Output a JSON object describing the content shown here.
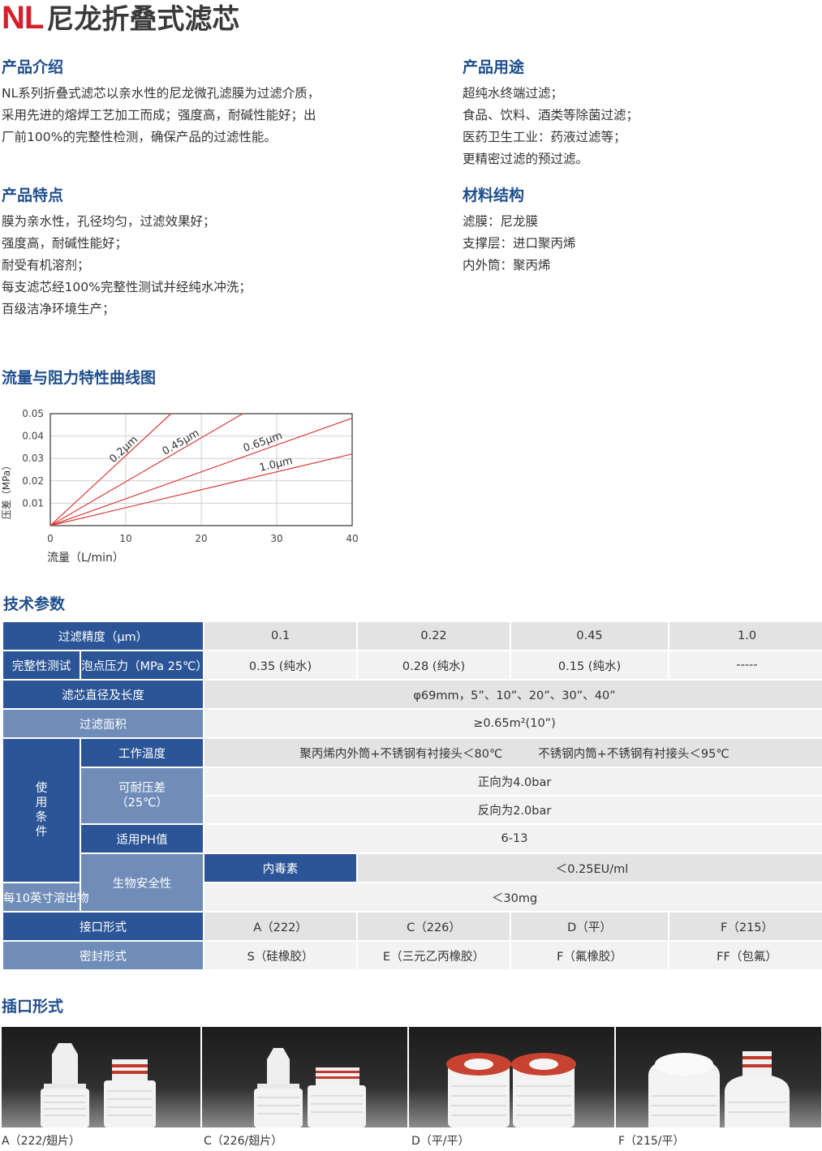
{
  "title": {
    "prefix": "NL",
    "main": "尼龙折叠式滤芯"
  },
  "intro": {
    "heading": "产品介绍",
    "lines": [
      "NL系列折叠式滤芯以亲水性的尼龙微孔滤膜为过滤介质，",
      "采用先进的熔焊工艺加工而成；强度高，耐碱性能好；出",
      "厂前100%的完整性检测，确保产品的过滤性能。"
    ]
  },
  "usage": {
    "heading": "产品用途",
    "lines": [
      "超纯水终端过滤；",
      "食品、饮料、酒类等除菌过滤；",
      "医药卫生工业：药液过滤等；",
      "更精密过滤的预过滤。"
    ]
  },
  "features": {
    "heading": "产品特点",
    "lines": [
      "膜为亲水性，孔径均匀，过滤效果好；",
      "强度高，耐碱性能好；",
      "耐受有机溶剂；",
      "每支滤芯经100%完整性测试并经纯水冲洗；",
      "百级洁净环境生产；"
    ]
  },
  "materials": {
    "heading": "材料结构",
    "lines": [
      "滤膜：尼龙膜",
      "支撑层：进口聚丙烯",
      "内外筒：聚丙烯"
    ]
  },
  "chart_section": {
    "heading": "流量与阻力特性曲线图"
  },
  "chart_data": {
    "type": "line",
    "xlabel": "流量（L/min）",
    "ylabel": "压差（MPa）",
    "xlim": [
      0,
      40
    ],
    "ylim": [
      0,
      0.05
    ],
    "x_ticks": [
      "0",
      "10",
      "20",
      "30",
      "40"
    ],
    "y_ticks": [
      "0.01",
      "0.02",
      "0.03",
      "0.04",
      "0.05"
    ],
    "grid": true,
    "series": [
      {
        "name": "0.2μm",
        "x": [
          0,
          16
        ],
        "y": [
          0,
          0.05
        ],
        "label_at": [
          10,
          0.033
        ]
      },
      {
        "name": "0.45μm",
        "x": [
          0,
          25.5
        ],
        "y": [
          0,
          0.05
        ],
        "label_at": [
          17.5,
          0.036
        ]
      },
      {
        "name": "0.65μm",
        "x": [
          0,
          40
        ],
        "y": [
          0,
          0.048
        ],
        "label_at": [
          28.3,
          0.036
        ]
      },
      {
        "name": "1.0μm",
        "x": [
          0,
          40
        ],
        "y": [
          0,
          0.032
        ],
        "label_at": [
          30,
          0.026
        ]
      }
    ],
    "color": "#d93a3a"
  },
  "tech": {
    "heading": "技术参数",
    "precision_label": "过滤精度（μm）",
    "precisions": [
      "0.1",
      "0.22",
      "0.45",
      "1.0"
    ],
    "integrity_label": "完整性测试",
    "bubble_label": "泡点压力（MPa 25℃）",
    "bubble_values": [
      "0.35 (纯水)",
      "0.28 (纯水)",
      "0.15 (纯水)",
      "-----"
    ],
    "size_label": "滤芯直径及长度",
    "size_value": "φ69mm，5”、10”、20”、30”、40”",
    "area_label": "过滤面积",
    "area_value": "≥0.65m²(10”)",
    "use_label": [
      "使",
      "用",
      "条",
      "件"
    ],
    "temp_label": "工作温度",
    "temp_value_1": "聚丙烯内外筒+不锈钢有衬接头＜80℃",
    "temp_value_2": "不锈钢内筒+不锈钢有衬接头＜95℃",
    "pressure_label_1": "可耐压差",
    "pressure_label_2": "（25℃）",
    "pressure_fwd": "正向为4.0bar",
    "pressure_rev": "反向为2.0bar",
    "ph_label": "适用PH值",
    "ph_value": "6-13",
    "bio_label": "生物安全性",
    "endotoxin_label": "内毒素",
    "endotoxin_value": "＜0.25EU/ml",
    "extract_label": "每10英寸溶出物",
    "extract_value": "＜30mg",
    "connector_label": "接口形式",
    "connectors": [
      "A（222）",
      "C（226）",
      "D（平）",
      "F（215）"
    ],
    "seal_label": "密封形式",
    "seals": [
      "S（硅橡胶）",
      "E（三元乙丙橡胶）",
      "F（氟橡胶）",
      "FF（包氟）"
    ]
  },
  "ports": {
    "heading": "插口形式",
    "captions": [
      "A（222/翅片）",
      "C（226/翅片）",
      "D（平/平）",
      "F（215/平）"
    ]
  }
}
